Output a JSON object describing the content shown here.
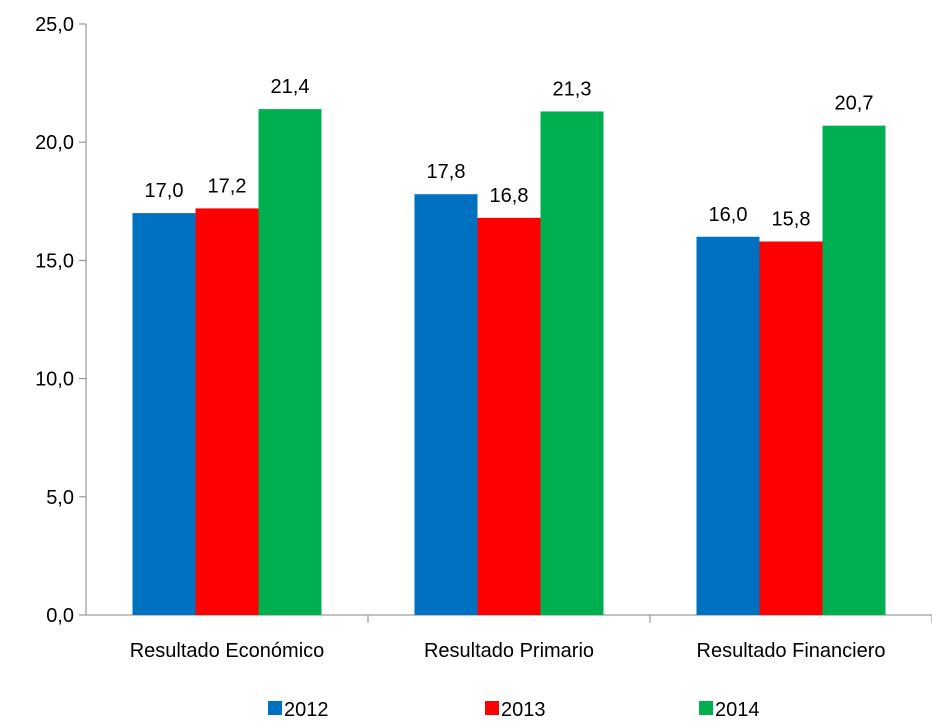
{
  "chart_data": {
    "type": "bar",
    "title": "",
    "xlabel": "",
    "ylabel": "",
    "categories": [
      "Resultado Económico",
      "Resultado Primario",
      "Resultado Financiero"
    ],
    "series": [
      {
        "name": "2012",
        "color": "#0070C0",
        "values": [
          17.0,
          17.8,
          16.0
        ]
      },
      {
        "name": "2013",
        "color": "#FF0000",
        "values": [
          17.2,
          16.8,
          15.8
        ]
      },
      {
        "name": "2014",
        "color": "#00B050",
        "values": [
          21.4,
          21.3,
          20.7
        ]
      }
    ],
    "ylim": [
      0,
      25
    ],
    "yticks": [
      0,
      5,
      10,
      15,
      20,
      25
    ],
    "ytick_labels": [
      "0,0",
      "5,0",
      "10,0",
      "15,0",
      "20,0",
      "25,0"
    ],
    "data_labels": [
      [
        "17,0",
        "17,8",
        "16,0"
      ],
      [
        "17,2",
        "16,8",
        "15,8"
      ],
      [
        "21,4",
        "21,3",
        "20,7"
      ]
    ],
    "grid": false,
    "legend": "bottom"
  }
}
